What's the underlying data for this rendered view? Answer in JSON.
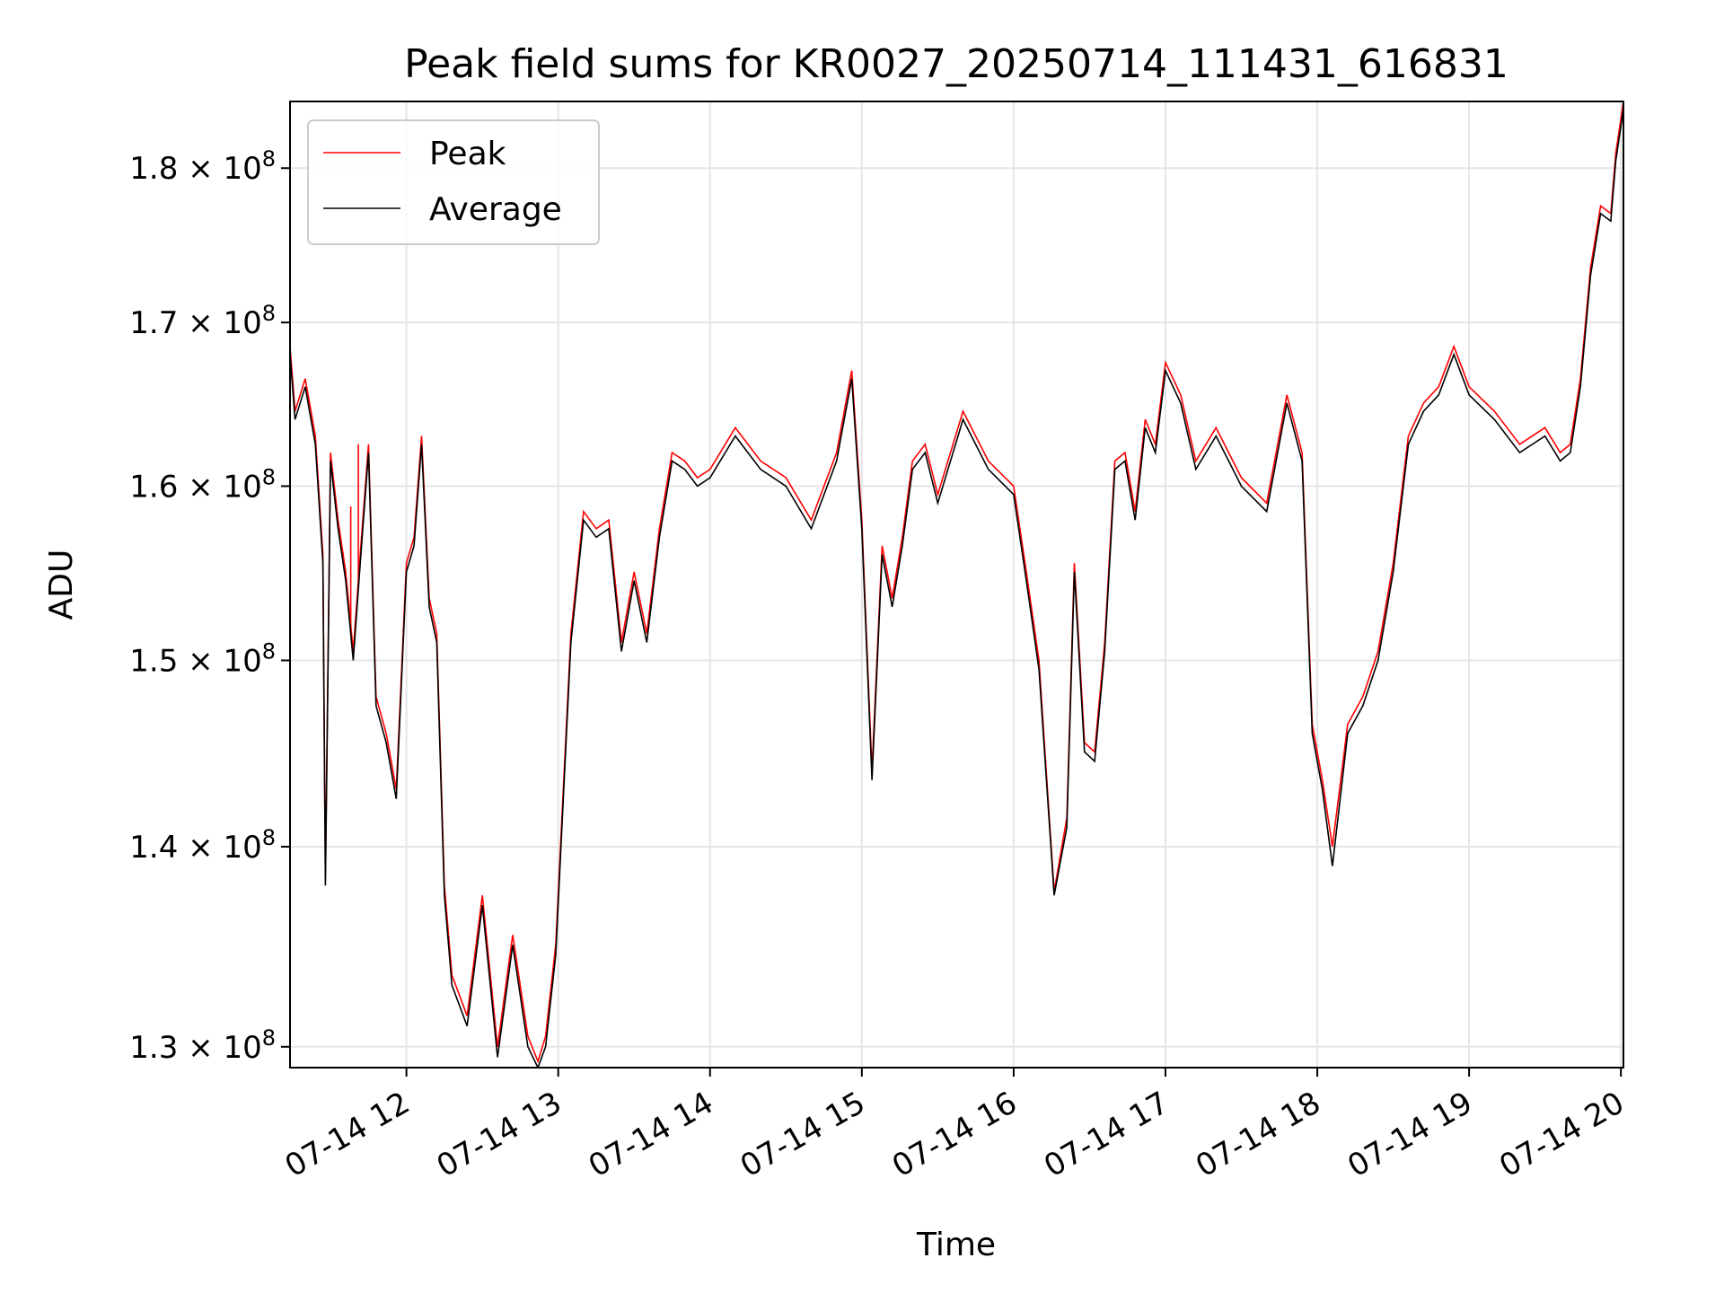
{
  "chart_data": {
    "type": "line",
    "title": "Peak field sums for KR0027_20250714_111431_616831",
    "xlabel": "Time",
    "ylabel": "ADU",
    "yscale": "log",
    "ylim": [
      129000000,
      184500000
    ],
    "xlim": [
      "07-14 11:14",
      "07-14 20:01"
    ],
    "grid": true,
    "legend_position": "top-left",
    "x_ticks": [
      "07-14 12",
      "07-14 13",
      "07-14 14",
      "07-14 15",
      "07-14 16",
      "07-14 17",
      "07-14 18",
      "07-14 19",
      "07-14 20"
    ],
    "y_ticks": [
      {
        "value": 130000000,
        "mantissa": "1.3",
        "exponent": "8"
      },
      {
        "value": 140000000,
        "mantissa": "1.4",
        "exponent": "8"
      },
      {
        "value": 150000000,
        "mantissa": "1.5",
        "exponent": "8"
      },
      {
        "value": 160000000,
        "mantissa": "1.6",
        "exponent": "8"
      },
      {
        "value": 170000000,
        "mantissa": "1.7",
        "exponent": "8"
      },
      {
        "value": 180000000,
        "mantissa": "1.8",
        "exponent": "8"
      }
    ],
    "x": [
      "07-14 11:14",
      "07-14 11:16",
      "07-14 11:20",
      "07-14 11:24",
      "07-14 11:27",
      "07-14 11:28",
      "07-14 11:30",
      "07-14 11:33",
      "07-14 11:36",
      "07-14 11:39",
      "07-14 11:42",
      "07-14 11:45",
      "07-14 11:48",
      "07-14 11:52",
      "07-14 11:56",
      "07-14 12:00",
      "07-14 12:03",
      "07-14 12:06",
      "07-14 12:09",
      "07-14 12:12",
      "07-14 12:15",
      "07-14 12:18",
      "07-14 12:24",
      "07-14 12:30",
      "07-14 12:36",
      "07-14 12:42",
      "07-14 12:48",
      "07-14 12:52",
      "07-14 12:55",
      "07-14 12:59",
      "07-14 13:05",
      "07-14 13:10",
      "07-14 13:15",
      "07-14 13:20",
      "07-14 13:25",
      "07-14 13:30",
      "07-14 13:35",
      "07-14 13:40",
      "07-14 13:45",
      "07-14 13:50",
      "07-14 13:55",
      "07-14 14:00",
      "07-14 14:10",
      "07-14 14:20",
      "07-14 14:30",
      "07-14 14:40",
      "07-14 14:50",
      "07-14 14:56",
      "07-14 15:00",
      "07-14 15:04",
      "07-14 15:08",
      "07-14 15:12",
      "07-14 15:16",
      "07-14 15:20",
      "07-14 15:25",
      "07-14 15:30",
      "07-14 15:40",
      "07-14 15:50",
      "07-14 16:00",
      "07-14 16:05",
      "07-14 16:10",
      "07-14 16:16",
      "07-14 16:21",
      "07-14 16:24",
      "07-14 16:28",
      "07-14 16:32",
      "07-14 16:36",
      "07-14 16:40",
      "07-14 16:44",
      "07-14 16:48",
      "07-14 16:52",
      "07-14 16:56",
      "07-14 17:00",
      "07-14 17:06",
      "07-14 17:12",
      "07-14 17:20",
      "07-14 17:30",
      "07-14 17:40",
      "07-14 17:48",
      "07-14 17:54",
      "07-14 17:58",
      "07-14 18:02",
      "07-14 18:06",
      "07-14 18:12",
      "07-14 18:18",
      "07-14 18:24",
      "07-14 18:30",
      "07-14 18:36",
      "07-14 18:42",
      "07-14 18:48",
      "07-14 18:54",
      "07-14 19:00",
      "07-14 19:10",
      "07-14 19:20",
      "07-14 19:30",
      "07-14 19:36",
      "07-14 19:40",
      "07-14 19:44",
      "07-14 19:48",
      "07-14 19:52",
      "07-14 19:56",
      "07-14 19:58",
      "07-14 20:01"
    ],
    "series": [
      {
        "name": "Peak",
        "color": "#ff0000",
        "values": [
          168500000,
          164500000,
          166500000,
          163000000,
          156000000,
          138500000,
          162000000,
          158000000,
          155000000,
          150500000,
          156500000,
          162500000,
          148000000,
          146000000,
          143000000,
          155500000,
          157000000,
          163000000,
          153500000,
          151500000,
          138000000,
          133500000,
          131500000,
          137500000,
          130000000,
          135500000,
          130500000,
          129300000,
          130500000,
          135000000,
          151500000,
          158500000,
          157500000,
          158000000,
          151000000,
          155000000,
          151500000,
          157500000,
          162000000,
          161500000,
          160500000,
          161000000,
          163500000,
          161500000,
          160500000,
          158000000,
          162000000,
          167000000,
          158000000,
          144000000,
          156500000,
          153500000,
          157000000,
          161500000,
          162500000,
          159500000,
          164500000,
          161500000,
          160000000,
          155000000,
          150000000,
          137700000,
          141500000,
          155500000,
          145500000,
          145000000,
          151000000,
          161500000,
          162000000,
          158500000,
          164000000,
          162500000,
          167500000,
          165500000,
          161500000,
          163500000,
          160500000,
          159000000,
          165500000,
          162000000,
          146500000,
          143500000,
          140000000,
          146500000,
          148000000,
          150500000,
          155500000,
          163000000,
          165000000,
          166000000,
          168500000,
          166000000,
          164500000,
          162500000,
          163500000,
          162000000,
          162500000,
          166500000,
          173500000,
          177500000,
          177000000,
          181000000,
          184500000
        ]
      },
      {
        "name": "Average",
        "color": "#000000",
        "values": [
          168000000,
          164000000,
          166000000,
          162500000,
          155500000,
          138000000,
          161500000,
          157500000,
          154500000,
          150000000,
          156000000,
          162000000,
          147500000,
          145500000,
          142500000,
          155000000,
          156500000,
          162500000,
          153000000,
          151000000,
          137500000,
          133000000,
          131000000,
          137000000,
          129500000,
          135000000,
          130000000,
          129000000,
          130000000,
          134500000,
          151000000,
          158000000,
          157000000,
          157500000,
          150500000,
          154500000,
          151000000,
          157000000,
          161500000,
          161000000,
          160000000,
          160500000,
          163000000,
          161000000,
          160000000,
          157500000,
          161500000,
          166500000,
          157500000,
          143500000,
          156000000,
          153000000,
          156500000,
          161000000,
          162000000,
          159000000,
          164000000,
          161000000,
          159500000,
          154500000,
          149500000,
          137500000,
          141000000,
          155000000,
          145000000,
          144500000,
          150500000,
          161000000,
          161500000,
          158000000,
          163500000,
          162000000,
          167000000,
          165000000,
          161000000,
          163000000,
          160000000,
          158500000,
          165000000,
          161500000,
          146000000,
          143000000,
          139000000,
          146000000,
          147500000,
          150000000,
          155000000,
          162500000,
          164500000,
          165500000,
          168000000,
          165500000,
          164000000,
          162000000,
          163000000,
          161500000,
          162000000,
          166000000,
          173000000,
          177000000,
          176500000,
          180500000,
          184000000
        ]
      }
    ],
    "annotations": [
      {
        "series": "Peak",
        "x": "07-14 11:38",
        "y": 158800000
      },
      {
        "series": "Peak",
        "x": "07-14 11:41",
        "y": 162500000
      }
    ]
  }
}
